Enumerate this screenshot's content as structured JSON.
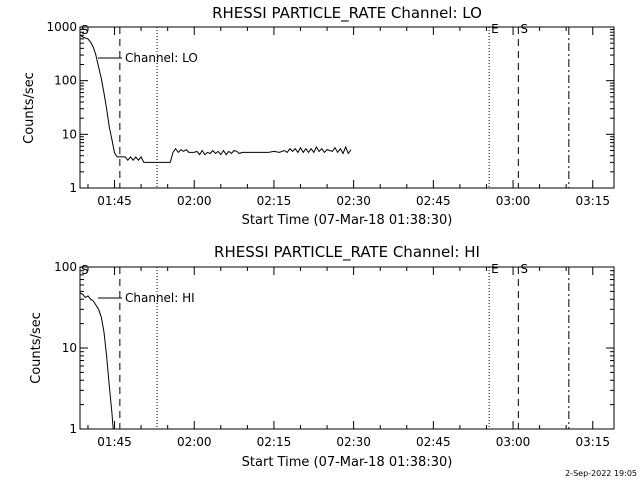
{
  "chart_data": [
    {
      "type": "line",
      "title": "RHESSI PARTICLE_RATE Channel: LO",
      "xlabel": "Start Time (07-Mar-18 01:38:30)",
      "ylabel": "Counts/sec",
      "yscale": "log",
      "ylim": [
        1,
        1000
      ],
      "yticks": [
        1,
        10,
        100,
        1000
      ],
      "ytick_labels": [
        "1",
        "10",
        "100",
        "1000"
      ],
      "xlim": [
        "01:38:30",
        "03:19:00"
      ],
      "xticks": [
        "01:45",
        "02:00",
        "02:15",
        "02:30",
        "02:45",
        "03:00",
        "03:15"
      ],
      "legend": "top-left",
      "series": [
        {
          "name": "Channel: LO",
          "x": [
            "01:38:30",
            "01:39:00",
            "01:40:00",
            "01:40:30",
            "01:41:00",
            "01:41:30",
            "01:42:00",
            "01:42:30",
            "01:43:00",
            "01:43:30",
            "01:44:00",
            "01:44:30",
            "01:45:00",
            "01:45:30",
            "01:46:00",
            "01:46:30",
            "01:47:00",
            "01:47:30",
            "01:48:00",
            "01:48:30",
            "01:49:00",
            "01:49:30",
            "01:50:00",
            "01:50:30",
            "01:51:00",
            "01:51:30",
            "01:52:00",
            "01:52:30",
            "01:53:00",
            "01:53:30",
            "01:54:00",
            "01:54:30",
            "01:55:00",
            "01:55:30",
            "01:56:00",
            "01:56:30",
            "01:57:00",
            "01:57:30",
            "01:58:00",
            "01:58:30",
            "01:59:00",
            "01:59:30",
            "02:00:00",
            "02:00:30",
            "02:01:00",
            "02:01:30",
            "02:02:00",
            "02:02:30",
            "02:03:00",
            "02:03:30",
            "02:04:00",
            "02:04:30",
            "02:05:00",
            "02:05:30",
            "02:06:00",
            "02:06:30",
            "02:07:00",
            "02:07:30",
            "02:08:00",
            "02:08:30",
            "02:09:00",
            "02:10:00",
            "02:11:00",
            "02:12:00",
            "02:13:00",
            "02:14:00",
            "02:15:00",
            "02:16:00",
            "02:17:00",
            "02:17:30",
            "02:18:00",
            "02:18:30",
            "02:19:00",
            "02:19:30",
            "02:20:00",
            "02:20:30",
            "02:21:00",
            "02:21:30",
            "02:22:00",
            "02:22:30",
            "02:23:00",
            "02:23:30",
            "02:24:00",
            "02:24:30",
            "02:25:00",
            "02:25:30",
            "02:26:00",
            "02:26:30",
            "02:27:00",
            "02:27:30",
            "02:28:00",
            "02:28:30",
            "02:29:00",
            "02:29:30"
          ],
          "y": [
            720,
            650,
            600,
            520,
            420,
            300,
            180,
            110,
            60,
            30,
            14,
            8,
            4.5,
            3.8,
            3.8,
            3.8,
            3.8,
            3.3,
            3.8,
            3.3,
            3.8,
            3.3,
            3.8,
            3.0,
            3.0,
            3.0,
            3.0,
            3.0,
            3.0,
            3.0,
            3.0,
            3.0,
            3.0,
            3.0,
            4.6,
            5.4,
            4.6,
            5.2,
            4.8,
            5.2,
            4.6,
            4.6,
            4.6,
            4.8,
            4.2,
            5.0,
            4.2,
            4.6,
            4.4,
            5.0,
            4.4,
            4.8,
            4.2,
            5.0,
            4.2,
            4.8,
            4.4,
            5.0,
            4.8,
            4.4,
            4.6,
            4.6,
            4.6,
            4.6,
            4.6,
            4.6,
            4.8,
            4.6,
            5.0,
            4.6,
            5.4,
            4.8,
            5.4,
            4.6,
            5.6,
            4.6,
            5.4,
            4.6,
            5.4,
            4.6,
            5.8,
            4.8,
            5.4,
            4.6,
            5.2,
            5.0,
            4.8,
            5.6,
            4.6,
            5.4,
            4.4,
            5.8,
            4.4,
            5.2
          ]
        }
      ],
      "markers": [
        {
          "time": "01:46:00",
          "style": "dashed",
          "label": ""
        },
        {
          "time": "01:53:00",
          "style": "dotted",
          "label": ""
        },
        {
          "time": "02:55:30",
          "style": "dotted",
          "label": "E"
        },
        {
          "time": "03:01:00",
          "style": "dashed",
          "label": "S"
        },
        {
          "time": "03:10:30",
          "style": "dashdot",
          "label": ""
        }
      ],
      "start_marker": "S"
    },
    {
      "type": "line",
      "title": "RHESSI PARTICLE_RATE Channel: HI",
      "xlabel": "Start Time (07-Mar-18 01:38:30)",
      "ylabel": "Counts/sec",
      "yscale": "log",
      "ylim": [
        1,
        100
      ],
      "yticks": [
        1,
        10,
        100
      ],
      "ytick_labels": [
        "1",
        "10",
        "100"
      ],
      "xlim": [
        "01:38:30",
        "03:19:00"
      ],
      "xticks": [
        "01:45",
        "02:00",
        "02:15",
        "02:30",
        "02:45",
        "03:00",
        "03:15"
      ],
      "legend": "top-left",
      "series": [
        {
          "name": "Channel: HI",
          "x": [
            "01:38:30",
            "01:39:00",
            "01:39:30",
            "01:40:00",
            "01:40:30",
            "01:41:00",
            "01:41:30",
            "01:42:00",
            "01:42:30",
            "01:43:00",
            "01:43:30",
            "01:44:00",
            "01:44:30",
            "01:44:45"
          ],
          "y": [
            48,
            46,
            42,
            44,
            40,
            38,
            34,
            30,
            24,
            16,
            8,
            3.5,
            1.6,
            1.0
          ]
        }
      ],
      "markers": [
        {
          "time": "01:46:00",
          "style": "dashed",
          "label": ""
        },
        {
          "time": "01:53:00",
          "style": "dotted",
          "label": ""
        },
        {
          "time": "02:55:30",
          "style": "dotted",
          "label": "E"
        },
        {
          "time": "03:01:00",
          "style": "dashed",
          "label": "S"
        },
        {
          "time": "03:10:30",
          "style": "dashdot",
          "label": ""
        }
      ],
      "start_marker": "S"
    }
  ],
  "footer": {
    "stamp": "2-Sep-2022 19:05"
  }
}
